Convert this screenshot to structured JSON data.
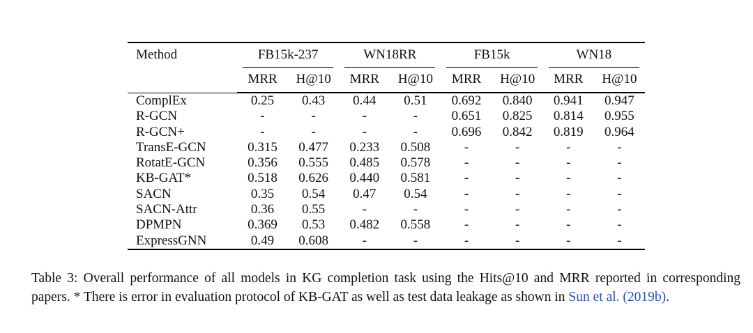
{
  "table": {
    "method_header": "Method",
    "datasets": [
      "FB15k-237",
      "WN18RR",
      "FB15k",
      "WN18"
    ],
    "metrics": [
      "MRR",
      "H@10",
      "MRR",
      "H@10",
      "MRR",
      "H@10",
      "MRR",
      "H@10"
    ],
    "rows": [
      {
        "method": "ComplEx",
        "values": [
          "0.25",
          "0.43",
          "0.44",
          "0.51",
          "0.692",
          "0.840",
          "0.941",
          "0.947"
        ]
      },
      {
        "method": "R-GCN",
        "values": [
          "-",
          "-",
          "-",
          "-",
          "0.651",
          "0.825",
          "0.814",
          "0.955"
        ]
      },
      {
        "method": "R-GCN+",
        "values": [
          "-",
          "-",
          "-",
          "-",
          "0.696",
          "0.842",
          "0.819",
          "0.964"
        ]
      },
      {
        "method": "TransE-GCN",
        "values": [
          "0.315",
          "0.477",
          "0.233",
          "0.508",
          "-",
          "-",
          "-",
          "-"
        ]
      },
      {
        "method": "RotatE-GCN",
        "values": [
          "0.356",
          "0.555",
          "0.485",
          "0.578",
          "-",
          "-",
          "-",
          "-"
        ]
      },
      {
        "method": "KB-GAT*",
        "values": [
          "0.518",
          "0.626",
          "0.440",
          "0.581",
          "-",
          "-",
          "-",
          "-"
        ]
      },
      {
        "method": "SACN",
        "values": [
          "0.35",
          "0.54",
          "0.47",
          "0.54",
          "-",
          "-",
          "-",
          "-"
        ]
      },
      {
        "method": "SACN-Attr",
        "values": [
          "0.36",
          "0.55",
          "-",
          "-",
          "-",
          "-",
          "-",
          "-"
        ]
      },
      {
        "method": "DPMPN",
        "values": [
          "0.369",
          "0.53",
          "0.482",
          "0.558",
          "-",
          "-",
          "-",
          "-"
        ]
      },
      {
        "method": "ExpressGNN",
        "values": [
          "0.49",
          "0.608",
          "-",
          "-",
          "-",
          "-",
          "-",
          "-"
        ]
      }
    ]
  },
  "caption": {
    "text": "Table 3: Overall performance of all models in KG completion task using the Hits@10 and MRR reported in corresponding papers. * There is error in evaluation protocol of KB-GAT as well as test data leakage as shown in ",
    "citation": "Sun et al. (2019b)",
    "end": "."
  },
  "colors": {
    "citation_link": "#2a4fb0",
    "text": "#111111"
  }
}
